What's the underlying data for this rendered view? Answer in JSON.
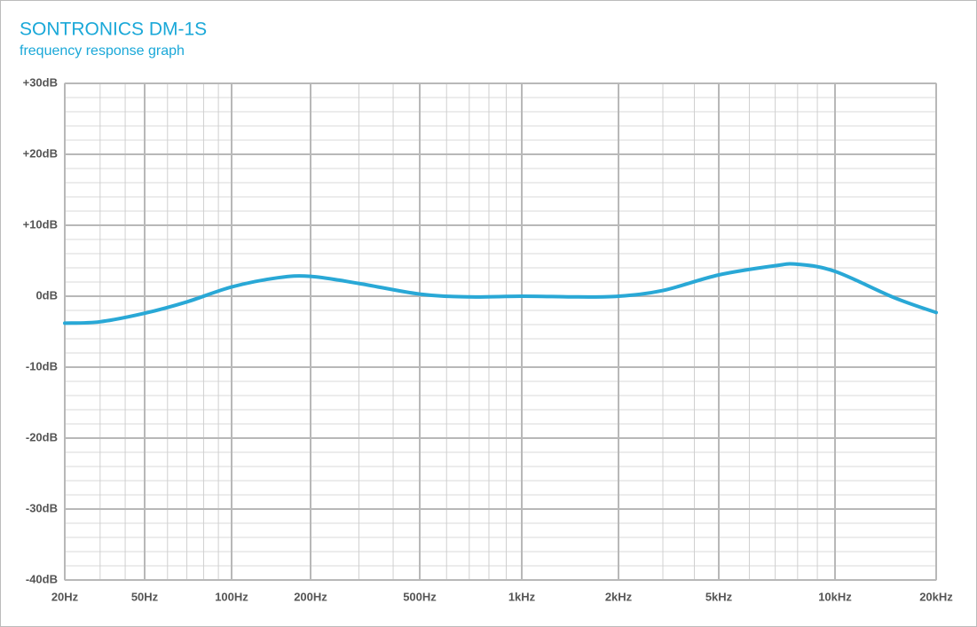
{
  "chart_data": {
    "type": "line",
    "title": "SONTRONICS DM-1S",
    "subtitle": "frequency response graph",
    "log_x": true,
    "grid": true,
    "xlim": [
      20,
      20000
    ],
    "xticks": [
      {
        "value": 20,
        "label": "20Hz"
      },
      {
        "value": 50,
        "label": "50Hz"
      },
      {
        "value": 100,
        "label": "100Hz"
      },
      {
        "value": 200,
        "label": "200Hz"
      },
      {
        "value": 500,
        "label": "500Hz"
      },
      {
        "value": 1000,
        "label": "1kHz"
      },
      {
        "value": 2000,
        "label": "2kHz"
      },
      {
        "value": 5000,
        "label": "5kHz"
      },
      {
        "value": 10000,
        "label": "10kHz"
      },
      {
        "value": 20000,
        "label": "20kHz"
      }
    ],
    "ylim": [
      -40,
      30
    ],
    "yticks": [
      {
        "value": 30,
        "label": "+30dB"
      },
      {
        "value": 20,
        "label": "+20dB"
      },
      {
        "value": 10,
        "label": "+10dB"
      },
      {
        "value": 0,
        "label": "0dB"
      },
      {
        "value": -10,
        "label": "-10dB"
      },
      {
        "value": -20,
        "label": "-20dB"
      },
      {
        "value": -30,
        "label": "-30dB"
      },
      {
        "value": -40,
        "label": "-40dB"
      }
    ],
    "x": [
      20,
      30,
      50,
      70,
      100,
      150,
      200,
      300,
      500,
      700,
      1000,
      1500,
      2000,
      3000,
      5000,
      7000,
      8000,
      10000,
      15000,
      20000
    ],
    "series": [
      {
        "color": "#29a8d6",
        "values": [
          -3.8,
          -3.6,
          -2.4,
          -0.8,
          1.3,
          2.6,
          2.8,
          1.8,
          0.3,
          -0.1,
          0,
          -0.1,
          0,
          0.8,
          3,
          4.3,
          4.5,
          3.5,
          -0.2,
          -2.3
        ]
      }
    ]
  }
}
